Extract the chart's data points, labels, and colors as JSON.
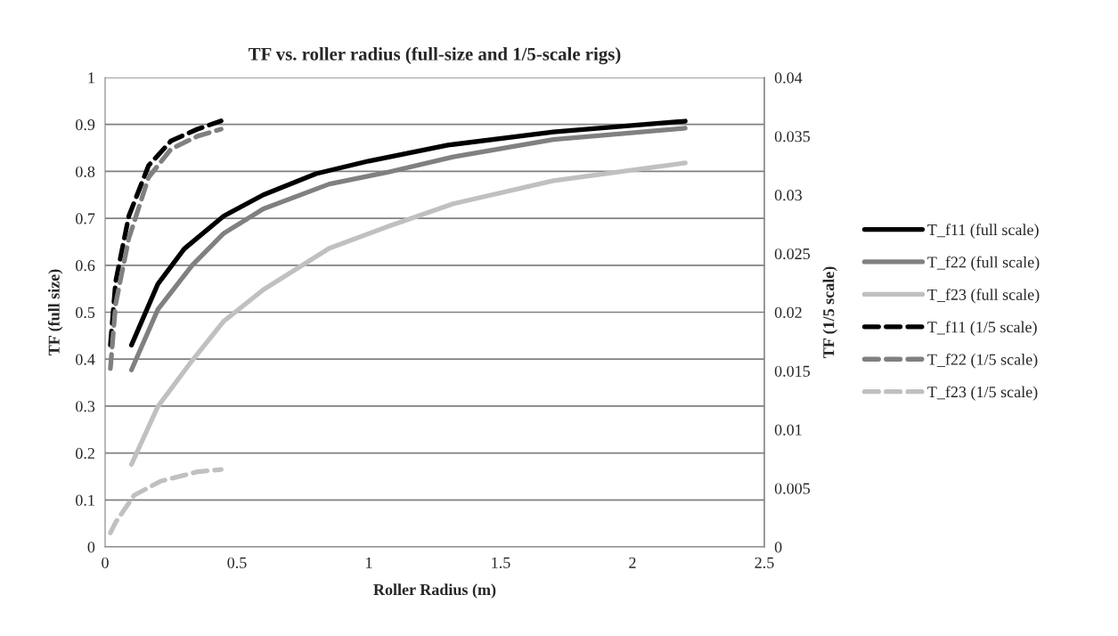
{
  "chart_data": {
    "type": "line",
    "title": "TF vs. roller radius (full-size and 1/5-scale rigs)",
    "xlabel": "Roller Radius (m)",
    "ylabel": "TF (full size)",
    "y2label": "TF (1/5 scale)",
    "xlim": [
      0,
      2.5
    ],
    "xticks": [
      0,
      0.5,
      1,
      1.5,
      2,
      2.5
    ],
    "ylim": [
      0,
      1
    ],
    "yticks": [
      0,
      0.1,
      0.2,
      0.3,
      0.4,
      0.5,
      0.6,
      0.7,
      0.8,
      0.9,
      1
    ],
    "y2lim": [
      0,
      0.04
    ],
    "y2ticks": [
      0,
      0.005,
      0.01,
      0.015,
      0.02,
      0.025,
      0.03,
      0.035,
      0.04
    ],
    "grid": "y",
    "legend": "right",
    "marker": "none",
    "series": [
      {
        "name": "T_f11 (full scale)",
        "color": "#000000",
        "line_style": "solid",
        "x": [
          0.1,
          0.2,
          0.3,
          0.45,
          0.6,
          0.8,
          1.0,
          1.3,
          1.7,
          2.2
        ],
        "values": [
          0.43,
          0.56,
          0.635,
          0.705,
          0.75,
          0.795,
          0.822,
          0.856,
          0.884,
          0.907
        ]
      },
      {
        "name": "T_f22 (full scale)",
        "color": "#808080",
        "line_style": "solid",
        "x": [
          0.1,
          0.2,
          0.33,
          0.45,
          0.6,
          0.85,
          1.07,
          1.32,
          1.7,
          2.2
        ],
        "values": [
          0.377,
          0.506,
          0.6,
          0.668,
          0.72,
          0.773,
          0.798,
          0.831,
          0.868,
          0.892
        ]
      },
      {
        "name": "T_f23 (full scale)",
        "color": "#c0c0c0",
        "line_style": "solid",
        "x": [
          0.1,
          0.2,
          0.33,
          0.45,
          0.6,
          0.85,
          1.07,
          1.32,
          1.7,
          2.2
        ],
        "values": [
          0.176,
          0.299,
          0.397,
          0.481,
          0.548,
          0.636,
          0.682,
          0.731,
          0.78,
          0.818
        ]
      },
      {
        "name": "T_f11 (1/5 scale)",
        "color": "#000000",
        "line_style": "dashed",
        "axis": "y2",
        "x": [
          0.02,
          0.04,
          0.09,
          0.165,
          0.25,
          0.35,
          0.44
        ],
        "values": [
          0.0172,
          0.0226,
          0.0282,
          0.0325,
          0.0346,
          0.0356,
          0.0363
        ]
      },
      {
        "name": "T_f22 (1/5 scale)",
        "color": "#808080",
        "line_style": "dashed",
        "axis": "y2",
        "x": [
          0.02,
          0.04,
          0.09,
          0.165,
          0.25,
          0.35,
          0.44
        ],
        "values": [
          0.0152,
          0.0207,
          0.0263,
          0.0315,
          0.0339,
          0.035,
          0.0356
        ]
      },
      {
        "name": "T_f23 (1/5 scale)",
        "color": "#c0c0c0",
        "line_style": "dashed",
        "axis": "y2",
        "x": [
          0.02,
          0.04,
          0.11,
          0.21,
          0.35,
          0.44
        ],
        "values": [
          0.0012,
          0.0021,
          0.0044,
          0.0056,
          0.0064,
          0.0066
        ]
      }
    ]
  }
}
